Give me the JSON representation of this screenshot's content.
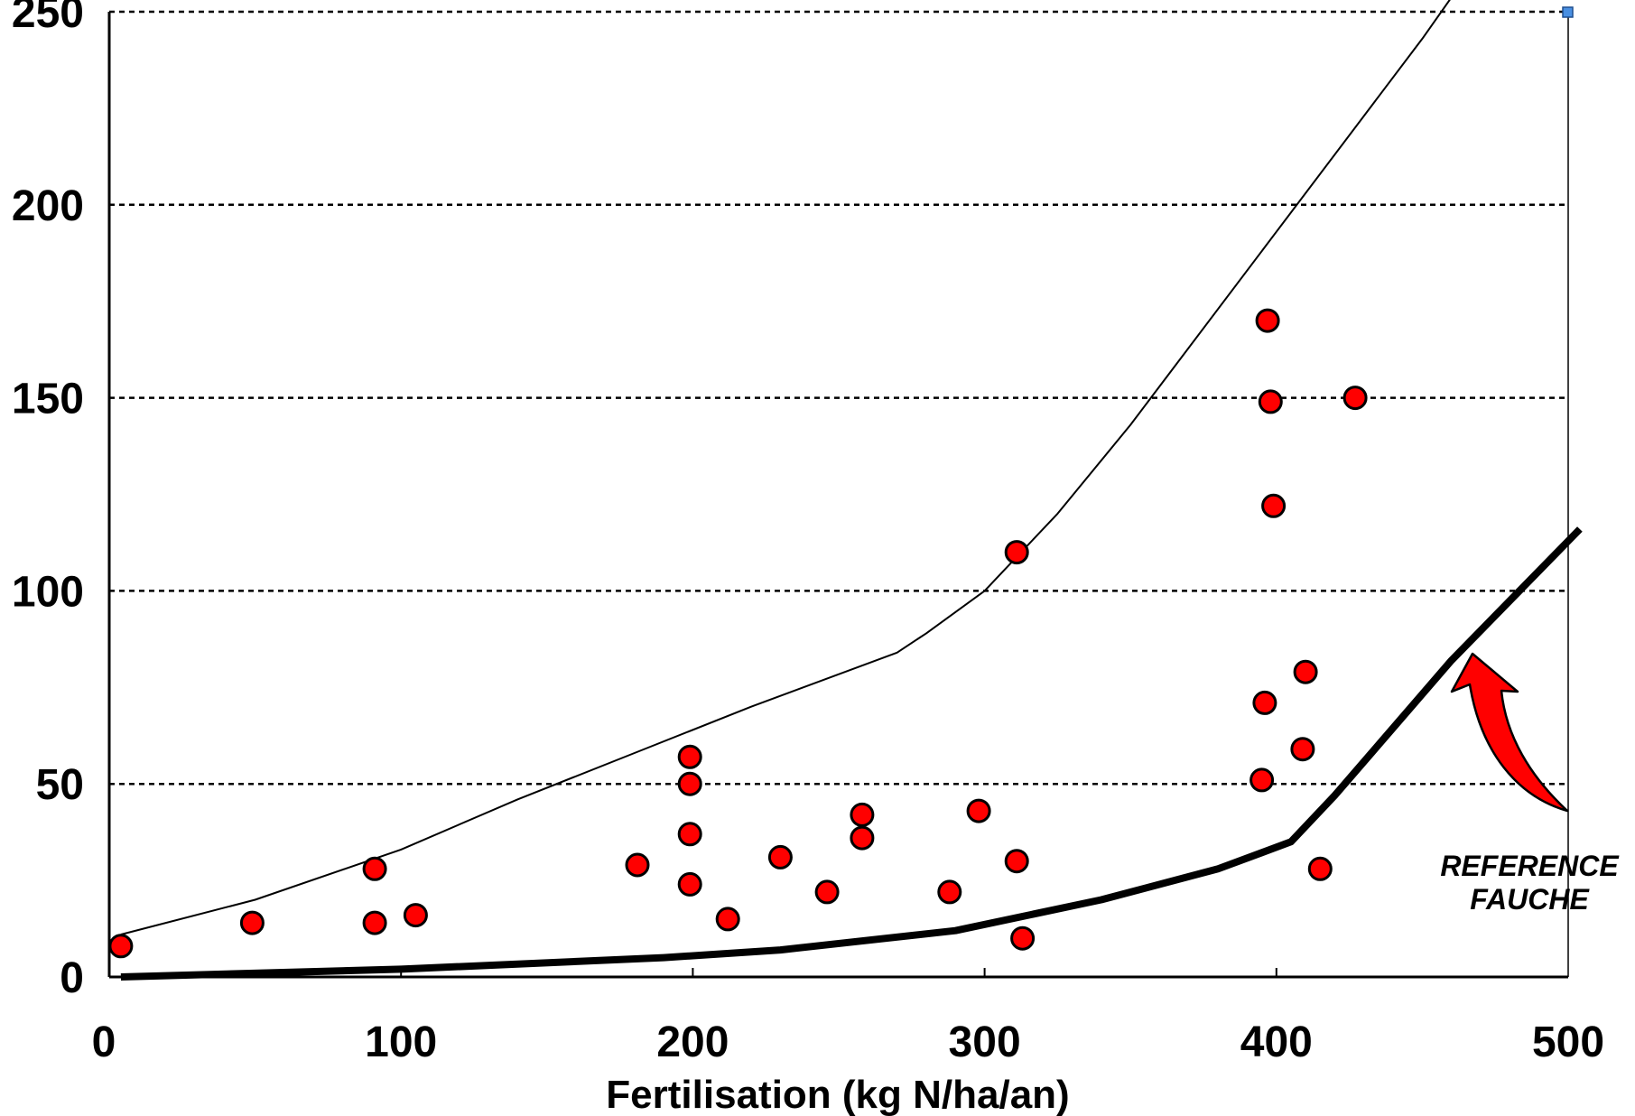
{
  "chart_data": {
    "type": "scatter",
    "title": "",
    "xlabel": "Fertilisation (kg N/ha/an)",
    "ylabel": "",
    "xlim": [
      0,
      500
    ],
    "ylim": [
      0,
      250
    ],
    "x_ticks": [
      "0",
      "100",
      "200",
      "300",
      "400",
      "500"
    ],
    "y_ticks": [
      "0",
      "50",
      "100",
      "150",
      "200",
      "250"
    ],
    "grid": "horizontal dotted",
    "colors": {
      "points": "#ff0000",
      "point_outline": "#000000",
      "upper_curve": "#000000",
      "reference_curve": "#000000",
      "arrow": "#ff0000",
      "corner_marker": "#4a90e2"
    },
    "series": [
      {
        "values": [
          {
            "x": 4,
            "y": 8
          },
          {
            "x": 49,
            "y": 14
          },
          {
            "x": 91,
            "y": 28
          },
          {
            "x": 91,
            "y": 14
          },
          {
            "x": 105,
            "y": 16
          },
          {
            "x": 181,
            "y": 29
          },
          {
            "x": 199,
            "y": 57
          },
          {
            "x": 199,
            "y": 50
          },
          {
            "x": 199,
            "y": 37
          },
          {
            "x": 199,
            "y": 24
          },
          {
            "x": 212,
            "y": 15
          },
          {
            "x": 230,
            "y": 31
          },
          {
            "x": 246,
            "y": 22
          },
          {
            "x": 258,
            "y": 42
          },
          {
            "x": 258,
            "y": 36
          },
          {
            "x": 288,
            "y": 22
          },
          {
            "x": 298,
            "y": 43
          },
          {
            "x": 311,
            "y": 110
          },
          {
            "x": 311,
            "y": 30
          },
          {
            "x": 313,
            "y": 10
          },
          {
            "x": 397,
            "y": 170
          },
          {
            "x": 398,
            "y": 149
          },
          {
            "x": 399,
            "y": 122
          },
          {
            "x": 396,
            "y": 71
          },
          {
            "x": 395,
            "y": 51
          },
          {
            "x": 410,
            "y": 79
          },
          {
            "x": 409,
            "y": 59
          },
          {
            "x": 415,
            "y": 28
          },
          {
            "x": 427,
            "y": 150
          }
        ]
      },
      {
        "type": "line",
        "values": [
          {
            "x": 4,
            "y": 11
          },
          {
            "x": 50,
            "y": 20
          },
          {
            "x": 100,
            "y": 33
          },
          {
            "x": 140,
            "y": 46
          },
          {
            "x": 180,
            "y": 58
          },
          {
            "x": 220,
            "y": 70
          },
          {
            "x": 270,
            "y": 84
          },
          {
            "x": 280,
            "y": 89
          },
          {
            "x": 300,
            "y": 100
          },
          {
            "x": 325,
            "y": 120
          },
          {
            "x": 350,
            "y": 143
          },
          {
            "x": 400,
            "y": 193
          },
          {
            "x": 450,
            "y": 243
          },
          {
            "x": 464,
            "y": 258
          }
        ]
      },
      {
        "type": "line",
        "values": [
          {
            "x": 4,
            "y": 0
          },
          {
            "x": 100,
            "y": 2
          },
          {
            "x": 190,
            "y": 5
          },
          {
            "x": 230,
            "y": 7
          },
          {
            "x": 290,
            "y": 12
          },
          {
            "x": 340,
            "y": 20
          },
          {
            "x": 380,
            "y": 28
          },
          {
            "x": 405,
            "y": 35
          },
          {
            "x": 420,
            "y": 47
          },
          {
            "x": 460,
            "y": 82
          },
          {
            "x": 504,
            "y": 116
          }
        ]
      }
    ],
    "annotations": {
      "reference_line1": "REFERENCE",
      "reference_line2": "FAUCHE"
    }
  }
}
